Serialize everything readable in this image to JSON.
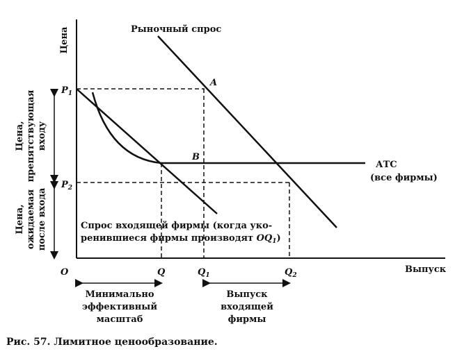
{
  "diagram": {
    "axes": {
      "y_label": "Цена",
      "x_label": "Выпуск",
      "origin": "O"
    },
    "price_points": {
      "p1": "P",
      "p1_sub": "1",
      "p2": "P",
      "p2_sub": "2"
    },
    "quantity_points": {
      "q": "Q",
      "q1": "Q",
      "q1_sub": "1",
      "q2": "Q",
      "q2_sub": "2"
    },
    "points": {
      "a": "A",
      "b": "B"
    },
    "curves": {
      "market_demand": "Рыночный спрос",
      "atc_line1": "АТС",
      "atc_line2": "(все фирмы)",
      "entrant_demand_line1": "Спрос входящей фирмы (когда уко-",
      "entrant_demand_line2_prefix": "ренившиеся фирмы производят ",
      "entrant_demand_line2_oq": "OQ",
      "entrant_demand_line2_sub": "1",
      "entrant_demand_line2_suffix": ")"
    },
    "side_labels": {
      "barrier_price_line1": "Цена,",
      "barrier_price_line2": "препятствующая",
      "barrier_price_line3": "входу",
      "expected_price_line1": "Цена,",
      "expected_price_line2": "ожидаемая",
      "expected_price_line3": "после входа"
    },
    "bottom_labels": {
      "min_scale_line1": "Минимально",
      "min_scale_line2": "эффективный",
      "min_scale_line3": "масштаб",
      "entrant_output_line1": "Выпуск",
      "entrant_output_line2": "входящей",
      "entrant_output_line3": "фирмы"
    }
  },
  "caption": "Рис. 57. Лимитное ценообразование."
}
